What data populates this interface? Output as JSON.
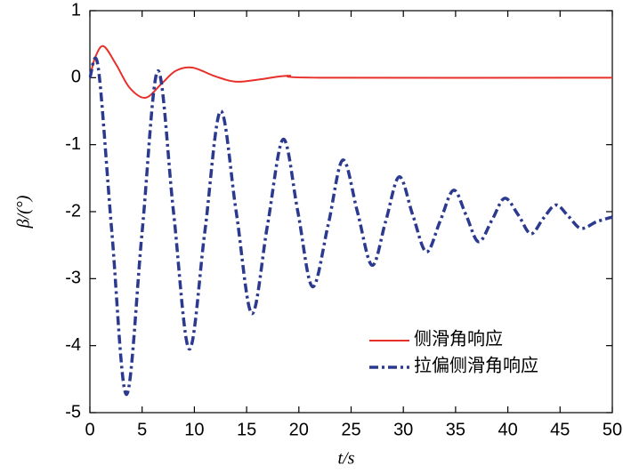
{
  "chart_data": {
    "type": "line",
    "xlabel": "t/s",
    "ylabel": "β/(°)",
    "xlim": [
      0,
      50
    ],
    "ylim": [
      -5,
      1
    ],
    "xticks": [
      0,
      5,
      10,
      15,
      20,
      25,
      30,
      35,
      40,
      45,
      50
    ],
    "yticks": [
      -5,
      -4,
      -3,
      -2,
      -1,
      0,
      1
    ],
    "legend": "lower right",
    "series": [
      {
        "name": "侧滑角响应",
        "color": "#e8302a",
        "dash": "solid",
        "x": [
          0,
          0.5,
          1.3,
          2.5,
          3.8,
          5.3,
          6.8,
          8.2,
          9.8,
          12,
          14,
          16.5,
          19,
          22,
          50
        ],
        "values": [
          0,
          0.3,
          0.47,
          0.2,
          -0.15,
          -0.3,
          -0.1,
          0.1,
          0.15,
          0.02,
          -0.06,
          -0.02,
          0.03,
          0,
          0
        ]
      },
      {
        "name": "拉偏侧滑角响应",
        "color": "#2b3a8f",
        "dash": "dashdot",
        "x": [
          0,
          0.8,
          2.1,
          3.5,
          5.0,
          6.5,
          8.0,
          9.5,
          11.0,
          12.5,
          14.0,
          15.5,
          17.0,
          18.5,
          19.9,
          21.3,
          22.8,
          24.2,
          25.6,
          27.0,
          28.3,
          29.6,
          30.9,
          32.2,
          33.5,
          34.8,
          36.0,
          37.2,
          38.5,
          39.7,
          41.0,
          42.2,
          43.4,
          44.6,
          45.8,
          47.0,
          48.5,
          50
        ],
        "values": [
          0,
          0.15,
          -2.3,
          -4.73,
          -2.3,
          0.1,
          -2.0,
          -4.05,
          -2.3,
          -0.5,
          -2.0,
          -3.52,
          -2.2,
          -0.92,
          -2.0,
          -3.12,
          -2.2,
          -1.23,
          -2.0,
          -2.8,
          -2.15,
          -1.48,
          -2.05,
          -2.6,
          -2.15,
          -1.68,
          -2.05,
          -2.45,
          -2.12,
          -1.8,
          -2.05,
          -2.33,
          -2.1,
          -1.9,
          -2.07,
          -2.25,
          -2.15,
          -2.08
        ]
      }
    ]
  }
}
